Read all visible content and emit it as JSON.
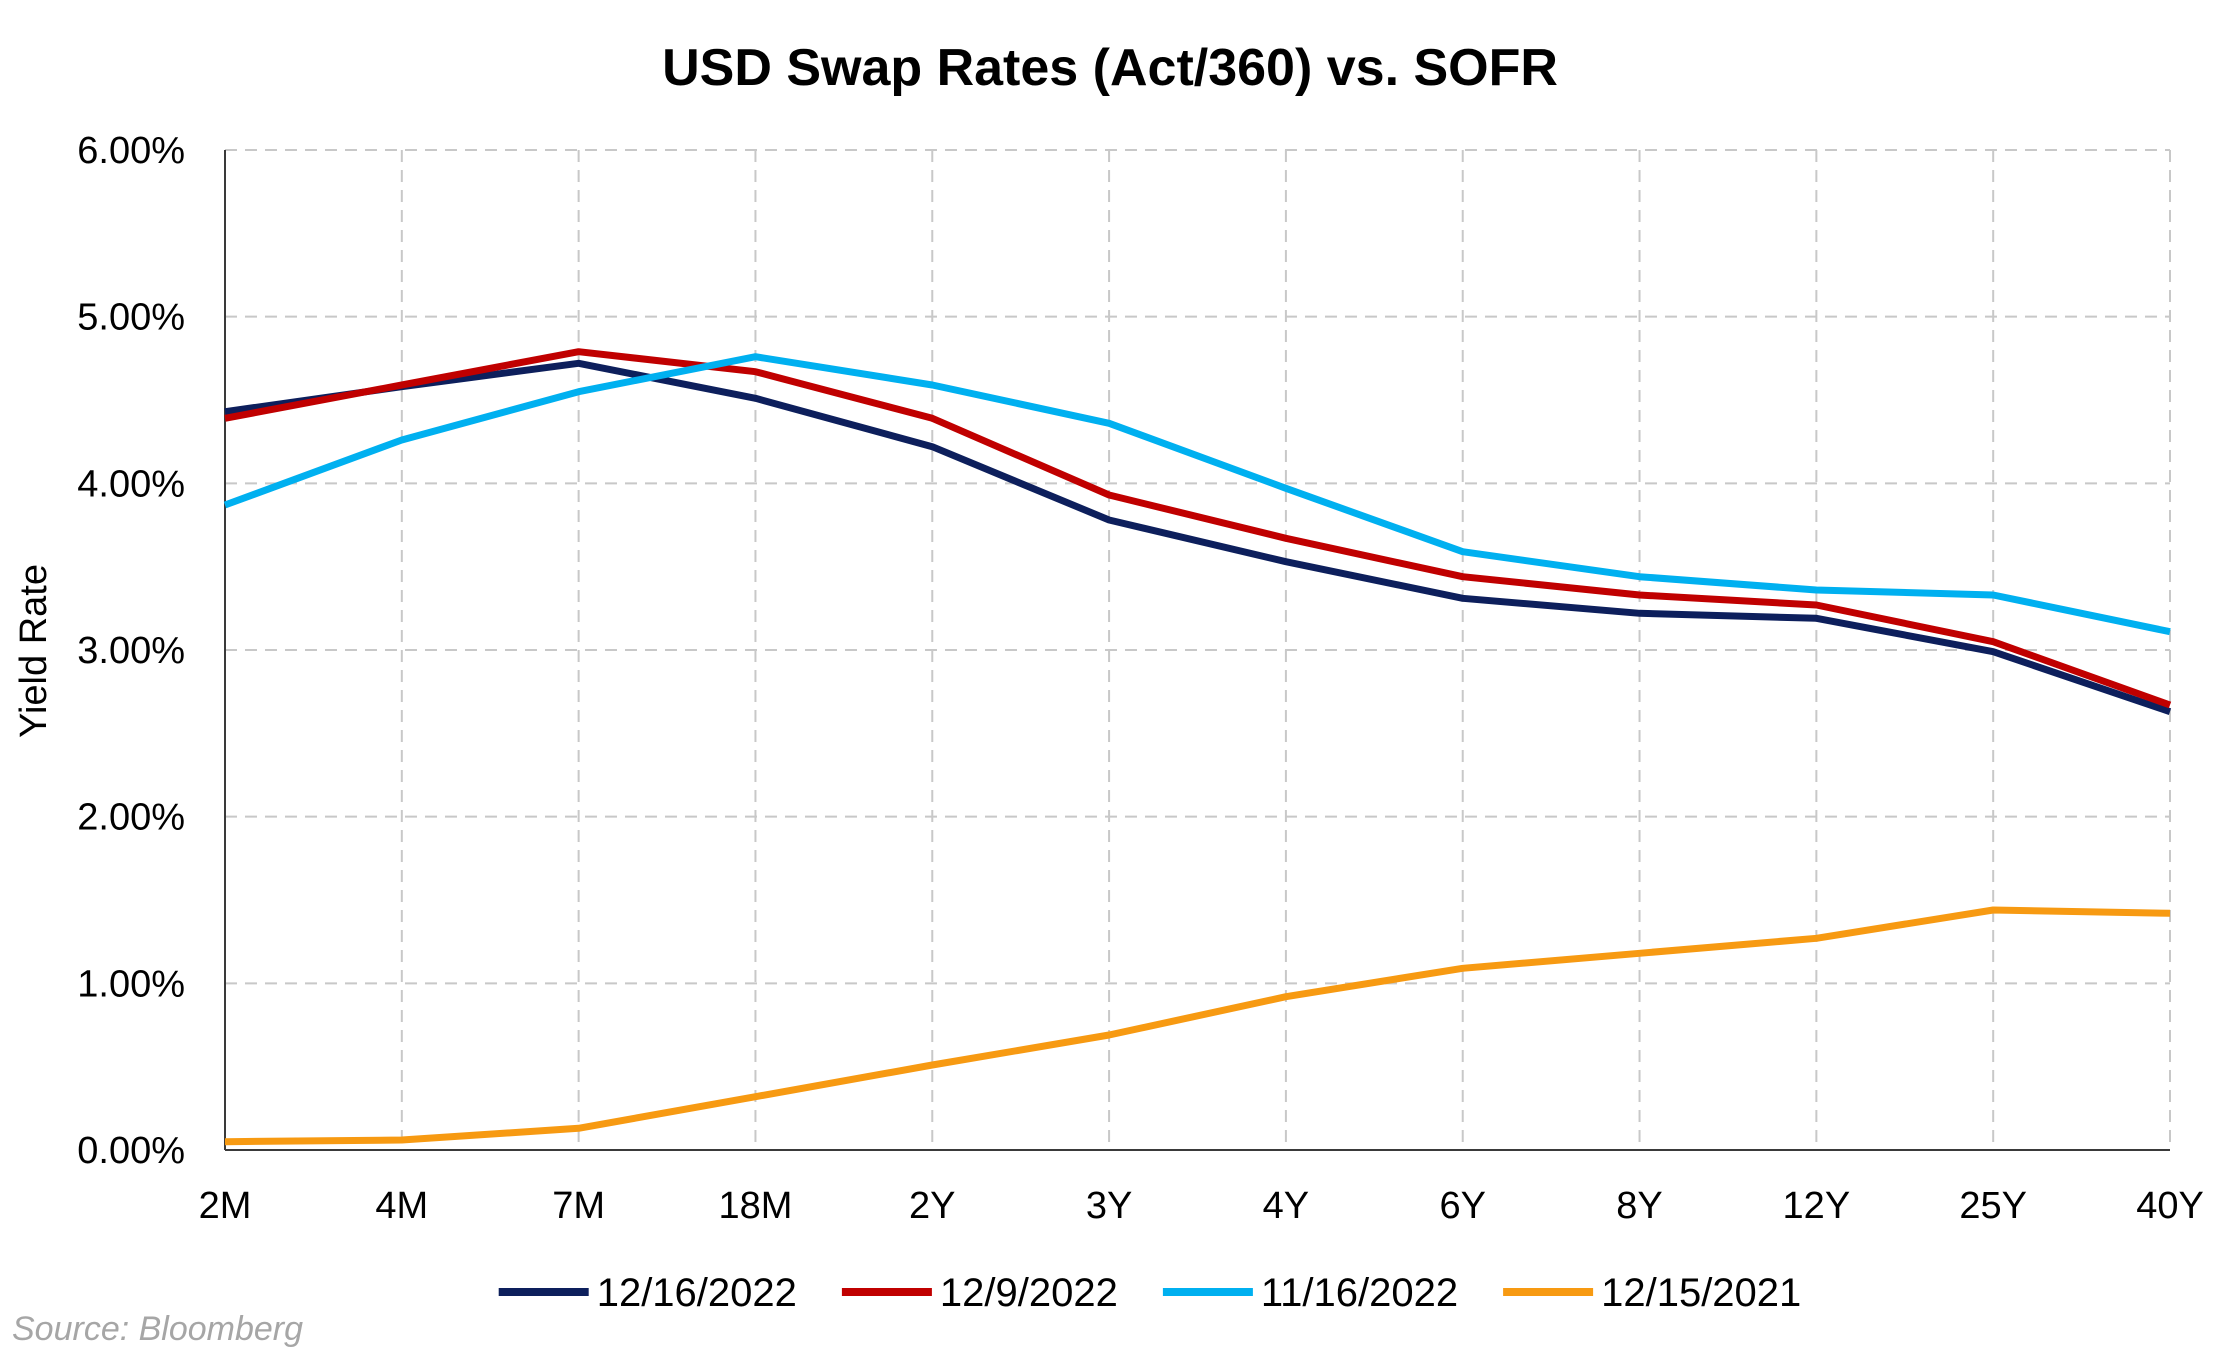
{
  "chart_data": {
    "type": "line",
    "title": "USD Swap Rates (Act/360) vs. SOFR",
    "ylabel": "Yield Rate",
    "xlabel": "",
    "categories": [
      "2M",
      "4M",
      "7M",
      "18M",
      "2Y",
      "3Y",
      "4Y",
      "6Y",
      "8Y",
      "12Y",
      "25Y",
      "40Y"
    ],
    "ylim": [
      0,
      6
    ],
    "yticks": [
      {
        "value": 0,
        "label": "0.00%"
      },
      {
        "value": 1,
        "label": "1.00%"
      },
      {
        "value": 2,
        "label": "2.00%"
      },
      {
        "value": 3,
        "label": "3.00%"
      },
      {
        "value": 4,
        "label": "4.00%"
      },
      {
        "value": 5,
        "label": "5.00%"
      },
      {
        "value": 6,
        "label": "6.00%"
      }
    ],
    "grid": true,
    "legend_position": "bottom",
    "series": [
      {
        "name": "12/16/2022",
        "color": "#0d1f5c",
        "values": [
          4.43,
          4.58,
          4.72,
          4.51,
          4.22,
          3.78,
          3.53,
          3.31,
          3.22,
          3.19,
          2.99,
          2.63
        ]
      },
      {
        "name": "12/9/2022",
        "color": "#c00000",
        "values": [
          4.39,
          4.59,
          4.79,
          4.67,
          4.39,
          3.93,
          3.67,
          3.44,
          3.33,
          3.27,
          3.05,
          2.67
        ]
      },
      {
        "name": "11/16/2022",
        "color": "#00b0f0",
        "values": [
          3.87,
          4.26,
          4.55,
          4.76,
          4.59,
          4.36,
          3.97,
          3.59,
          3.44,
          3.36,
          3.33,
          3.11
        ]
      },
      {
        "name": "12/15/2021",
        "color": "#f79a12",
        "values": [
          0.05,
          0.06,
          0.13,
          0.32,
          0.51,
          0.69,
          0.92,
          1.09,
          1.18,
          1.27,
          1.44,
          1.42
        ]
      }
    ]
  },
  "source": "Source: Bloomberg"
}
